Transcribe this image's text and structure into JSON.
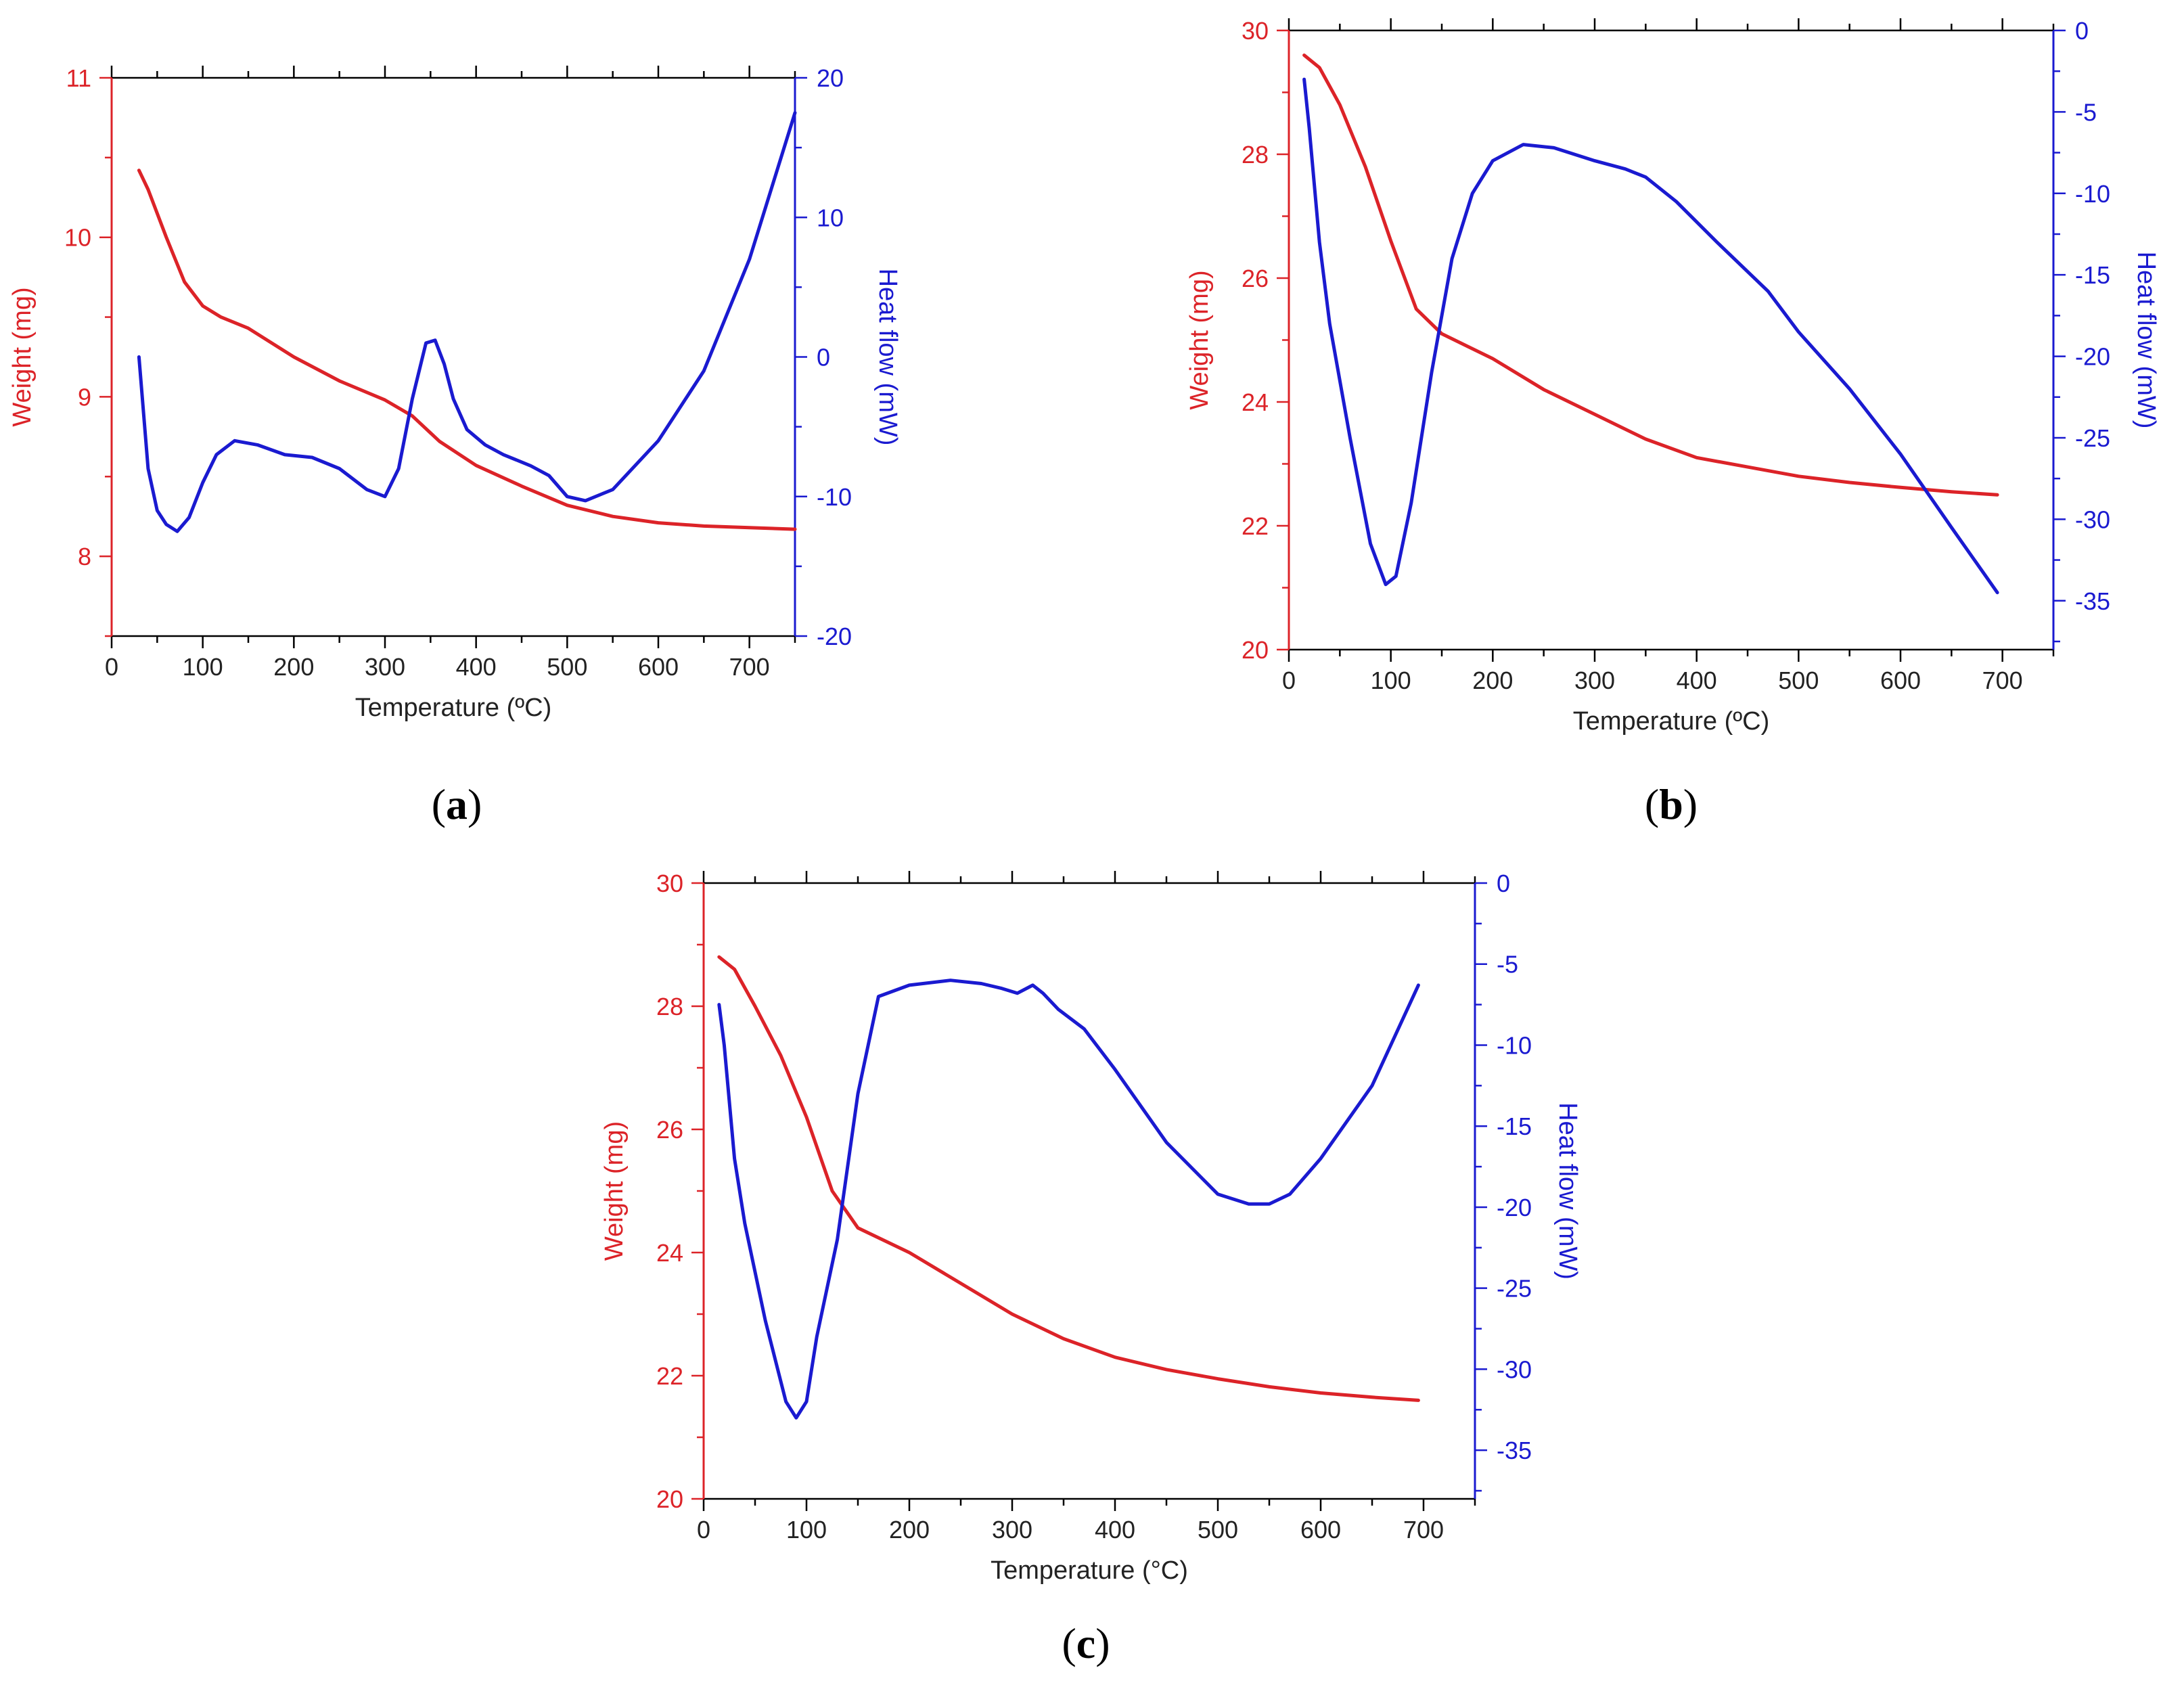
{
  "colors": {
    "weight": "#dc2328",
    "heat": "#1a1ad0",
    "frame": "#000000"
  },
  "chart_data": [
    {
      "panel": "a",
      "type": "line",
      "caption": {
        "open": "(",
        "letter": "a",
        "close": ")"
      },
      "xlabel": "Temperature (ºC)",
      "ylabel": "Weight (mg)",
      "y2label": "Heat flow (mW)",
      "xlim": [
        0,
        750
      ],
      "ylim": [
        7.5,
        11
      ],
      "y2lim": [
        -20,
        20
      ],
      "xticks": [
        "0",
        "100",
        "200",
        "300",
        "400",
        "500",
        "600",
        "700"
      ],
      "yticks": [
        "8",
        "9",
        "10",
        "11"
      ],
      "y2ticks": [
        "-20",
        "-10",
        "0",
        "10",
        "20"
      ],
      "series": [
        {
          "name": "Weight",
          "axis": "left",
          "color": "#dc2328",
          "x": [
            30,
            40,
            60,
            80,
            100,
            120,
            150,
            200,
            250,
            300,
            330,
            360,
            400,
            450,
            500,
            550,
            600,
            650,
            700,
            750
          ],
          "y": [
            10.42,
            10.3,
            10.0,
            9.72,
            9.57,
            9.5,
            9.43,
            9.25,
            9.1,
            8.98,
            8.88,
            8.72,
            8.57,
            8.44,
            8.32,
            8.25,
            8.21,
            8.19,
            8.18,
            8.17
          ]
        },
        {
          "name": "Heat flow",
          "axis": "right",
          "color": "#1a1ad0",
          "x": [
            30,
            40,
            50,
            60,
            72,
            85,
            100,
            115,
            135,
            160,
            190,
            220,
            250,
            280,
            300,
            315,
            330,
            345,
            355,
            365,
            375,
            390,
            410,
            430,
            460,
            480,
            500,
            520,
            550,
            600,
            650,
            700,
            750
          ],
          "y": [
            0,
            -8,
            -11,
            -12,
            -12.5,
            -11.5,
            -9,
            -7,
            -6,
            -6.3,
            -7,
            -7.2,
            -8,
            -9.5,
            -10,
            -8,
            -3,
            1,
            1.2,
            -0.5,
            -3,
            -5.2,
            -6.3,
            -7,
            -7.8,
            -8.5,
            -10,
            -10.3,
            -9.5,
            -6,
            -1,
            7,
            17.5
          ]
        }
      ]
    },
    {
      "panel": "b",
      "type": "line",
      "caption": {
        "open": "(",
        "letter": "b",
        "close": ")"
      },
      "xlabel": "Temperature (ºC)",
      "ylabel": "Weight (mg)",
      "y2label": "Heat flow (mW)",
      "xlim": [
        0,
        750
      ],
      "ylim": [
        20,
        30
      ],
      "y2lim": [
        -38,
        0
      ],
      "xticks": [
        "0",
        "100",
        "200",
        "300",
        "400",
        "500",
        "600",
        "700"
      ],
      "yticks": [
        "20",
        "22",
        "24",
        "26",
        "28",
        "30"
      ],
      "y2ticks": [
        "0",
        "-5",
        "-10",
        "-15",
        "-20",
        "-25",
        "-30",
        "-35"
      ],
      "series": [
        {
          "name": "Weight",
          "axis": "left",
          "color": "#dc2328",
          "x": [
            15,
            30,
            50,
            75,
            100,
            125,
            150,
            200,
            250,
            300,
            350,
            400,
            450,
            500,
            550,
            600,
            650,
            695
          ],
          "y": [
            29.6,
            29.4,
            28.8,
            27.8,
            26.6,
            25.5,
            25.1,
            24.7,
            24.2,
            23.8,
            23.4,
            23.1,
            22.95,
            22.8,
            22.7,
            22.62,
            22.55,
            22.5
          ]
        },
        {
          "name": "Heat flow",
          "axis": "right",
          "color": "#1a1ad0",
          "x": [
            15,
            20,
            30,
            40,
            60,
            80,
            95,
            105,
            120,
            140,
            160,
            180,
            200,
            230,
            260,
            300,
            330,
            350,
            380,
            420,
            470,
            500,
            550,
            600,
            650,
            695
          ],
          "y": [
            -3,
            -6,
            -13,
            -18,
            -25,
            -31.5,
            -34,
            -33.5,
            -29,
            -21,
            -14,
            -10,
            -8,
            -7,
            -7.2,
            -8,
            -8.5,
            -9,
            -10.5,
            -13,
            -16,
            -18.5,
            -22,
            -26,
            -30.5,
            -34.5
          ]
        }
      ]
    },
    {
      "panel": "c",
      "type": "line",
      "caption": {
        "open": "(",
        "letter": "c",
        "close": ")"
      },
      "xlabel": "Temperature (°C)",
      "ylabel": "Weight (mg)",
      "y2label": "Heat flow (mW)",
      "xlim": [
        0,
        750
      ],
      "ylim": [
        20,
        30
      ],
      "y2lim": [
        -38,
        0
      ],
      "xticks": [
        "0",
        "100",
        "200",
        "300",
        "400",
        "500",
        "600",
        "700"
      ],
      "yticks": [
        "20",
        "22",
        "24",
        "26",
        "28",
        "30"
      ],
      "y2ticks": [
        "0",
        "-5",
        "-10",
        "-15",
        "-20",
        "-25",
        "-30",
        "-35"
      ],
      "series": [
        {
          "name": "Weight",
          "axis": "left",
          "color": "#dc2328",
          "x": [
            15,
            30,
            50,
            75,
            100,
            125,
            150,
            200,
            250,
            300,
            350,
            400,
            450,
            500,
            550,
            600,
            650,
            695
          ],
          "y": [
            28.8,
            28.6,
            28.0,
            27.2,
            26.2,
            25.0,
            24.4,
            24.0,
            23.5,
            23.0,
            22.6,
            22.3,
            22.1,
            21.95,
            21.82,
            21.72,
            21.65,
            21.6
          ]
        },
        {
          "name": "Heat flow",
          "axis": "right",
          "color": "#1a1ad0",
          "x": [
            15,
            20,
            30,
            40,
            60,
            80,
            90,
            100,
            110,
            130,
            150,
            170,
            200,
            240,
            270,
            290,
            305,
            320,
            330,
            345,
            370,
            400,
            450,
            500,
            530,
            550,
            570,
            600,
            650,
            695
          ],
          "y": [
            -7.5,
            -10,
            -17,
            -21,
            -27,
            -32,
            -33,
            -32,
            -28,
            -22,
            -13,
            -7,
            -6.3,
            -6,
            -6.2,
            -6.5,
            -6.8,
            -6.3,
            -6.8,
            -7.8,
            -9,
            -11.5,
            -16,
            -19.2,
            -19.8,
            -19.8,
            -19.2,
            -17,
            -12.5,
            -6.3
          ]
        }
      ]
    }
  ]
}
